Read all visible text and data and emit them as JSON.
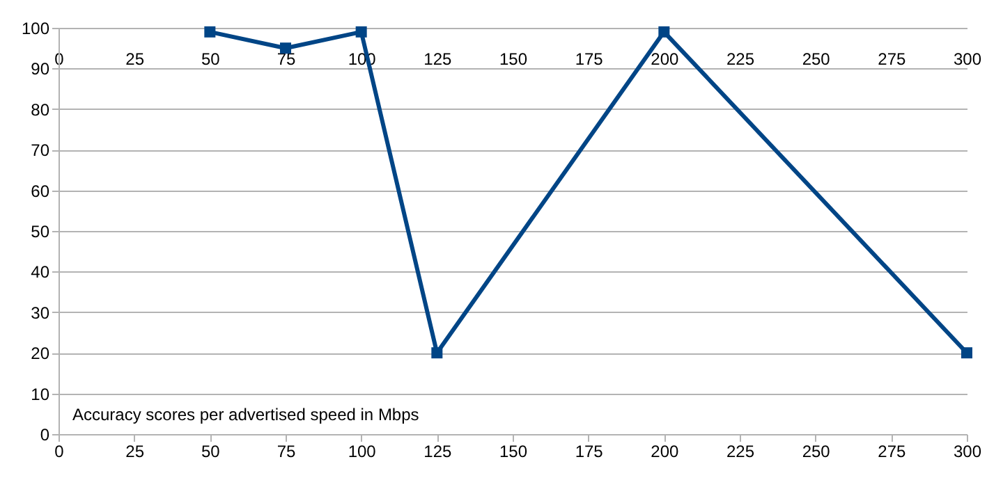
{
  "chart_data": {
    "type": "line",
    "x": [
      50,
      75,
      100,
      125,
      200,
      300
    ],
    "series": [
      {
        "color": "#004586",
        "values": [
          99,
          95,
          99,
          20,
          99,
          20
        ]
      }
    ],
    "xlim": [
      0,
      300
    ],
    "xticks": [
      0,
      25,
      50,
      75,
      100,
      125,
      150,
      175,
      200,
      225,
      250,
      275,
      300
    ],
    "x2lim": [
      0,
      300
    ],
    "x2ticks": [
      0,
      25,
      50,
      75,
      100,
      125,
      150,
      175,
      200,
      225,
      250,
      275,
      300
    ],
    "ylim": [
      0,
      100
    ],
    "yticks": [
      0,
      10,
      20,
      30,
      40,
      50,
      60,
      70,
      80,
      90,
      100
    ],
    "grid": "y",
    "marker": "square",
    "line_style": "solid",
    "annotations": [
      "Accuracy scores per advertised speed in Mbps"
    ]
  }
}
